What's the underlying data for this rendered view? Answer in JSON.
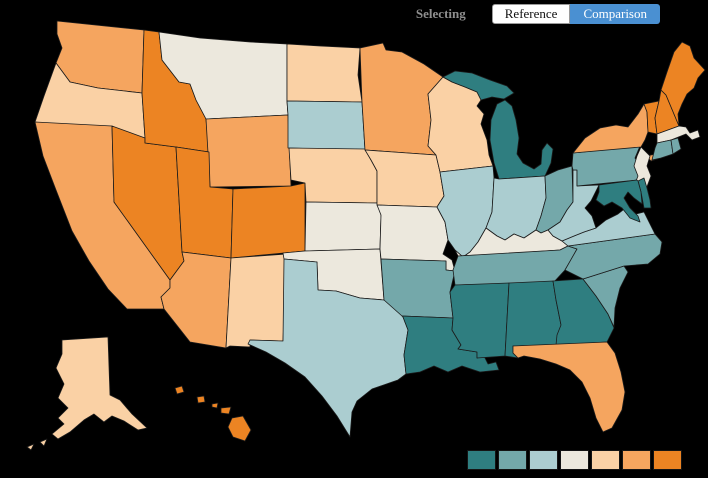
{
  "toolbar": {
    "selecting_label": "Selecting",
    "reference_label": "Reference",
    "comparison_label": "Comparison",
    "active_button": "Comparison",
    "accent_color": "#4a90d2"
  },
  "map": {
    "background": "#000000",
    "border_color": "#1b1b1b"
  },
  "legend": {
    "position": "bottom-right",
    "swatch_count": 7
  },
  "chart_data": {
    "type": "choropleth",
    "region": "United States (states, Albers projection with Alaska and Hawaii insets)",
    "title": "",
    "legend_position": "bottom-right",
    "scale": {
      "type": "diverging-ordinal",
      "classes": 7,
      "order": "1 = darkest teal … 7 = darkest orange",
      "colors": [
        "#2f7e80",
        "#74a8aa",
        "#abcdd0",
        "#ece8dd",
        "#fad1a5",
        "#f5a55f",
        "#ec8423"
      ]
    },
    "states": [
      {
        "id": "WA",
        "name": "Washington",
        "class": 6
      },
      {
        "id": "OR",
        "name": "Oregon",
        "class": 5
      },
      {
        "id": "CA",
        "name": "California",
        "class": 6
      },
      {
        "id": "NV",
        "name": "Nevada",
        "class": 7
      },
      {
        "id": "ID",
        "name": "Idaho",
        "class": 7
      },
      {
        "id": "MT",
        "name": "Montana",
        "class": 4
      },
      {
        "id": "WY",
        "name": "Wyoming",
        "class": 6
      },
      {
        "id": "UT",
        "name": "Utah",
        "class": 7
      },
      {
        "id": "CO",
        "name": "Colorado",
        "class": 7
      },
      {
        "id": "AZ",
        "name": "Arizona",
        "class": 6
      },
      {
        "id": "NM",
        "name": "New Mexico",
        "class": 5
      },
      {
        "id": "ND",
        "name": "North Dakota",
        "class": 5
      },
      {
        "id": "SD",
        "name": "South Dakota",
        "class": 3
      },
      {
        "id": "NE",
        "name": "Nebraska",
        "class": 5
      },
      {
        "id": "KS",
        "name": "Kansas",
        "class": 4
      },
      {
        "id": "OK",
        "name": "Oklahoma",
        "class": 4
      },
      {
        "id": "TX",
        "name": "Texas",
        "class": 3
      },
      {
        "id": "MN",
        "name": "Minnesota",
        "class": 6
      },
      {
        "id": "IA",
        "name": "Iowa",
        "class": 5
      },
      {
        "id": "MO",
        "name": "Missouri",
        "class": 4
      },
      {
        "id": "AR",
        "name": "Arkansas",
        "class": 2
      },
      {
        "id": "LA",
        "name": "Louisiana",
        "class": 1
      },
      {
        "id": "WI",
        "name": "Wisconsin",
        "class": 5
      },
      {
        "id": "IL",
        "name": "Illinois",
        "class": 3
      },
      {
        "id": "MI",
        "name": "Michigan",
        "class": 1
      },
      {
        "id": "IN",
        "name": "Indiana",
        "class": 3
      },
      {
        "id": "OH",
        "name": "Ohio",
        "class": 2
      },
      {
        "id": "KY",
        "name": "Kentucky",
        "class": 4
      },
      {
        "id": "TN",
        "name": "Tennessee",
        "class": 2
      },
      {
        "id": "MS",
        "name": "Mississippi",
        "class": 1
      },
      {
        "id": "AL",
        "name": "Alabama",
        "class": 1
      },
      {
        "id": "GA",
        "name": "Georgia",
        "class": 1
      },
      {
        "id": "FL",
        "name": "Florida",
        "class": 6
      },
      {
        "id": "SC",
        "name": "South Carolina",
        "class": 2
      },
      {
        "id": "NC",
        "name": "North Carolina",
        "class": 2
      },
      {
        "id": "VA",
        "name": "Virginia",
        "class": 3
      },
      {
        "id": "WV",
        "name": "West Virginia",
        "class": 3
      },
      {
        "id": "PA",
        "name": "Pennsylvania",
        "class": 2
      },
      {
        "id": "NY",
        "name": "New York",
        "class": 6
      },
      {
        "id": "NJ",
        "name": "New Jersey",
        "class": 4
      },
      {
        "id": "DE",
        "name": "Delaware",
        "class": 1
      },
      {
        "id": "MD",
        "name": "Maryland",
        "class": 1
      },
      {
        "id": "VT",
        "name": "Vermont",
        "class": 7
      },
      {
        "id": "NH",
        "name": "New Hampshire",
        "class": 7
      },
      {
        "id": "ME",
        "name": "Maine",
        "class": 7
      },
      {
        "id": "MA",
        "name": "Massachusetts",
        "class": 4
      },
      {
        "id": "CT",
        "name": "Connecticut",
        "class": 2
      },
      {
        "id": "RI",
        "name": "Rhode Island",
        "class": 2
      },
      {
        "id": "AK",
        "name": "Alaska",
        "class": 5
      },
      {
        "id": "HI",
        "name": "Hawaii",
        "class": 7
      }
    ]
  }
}
